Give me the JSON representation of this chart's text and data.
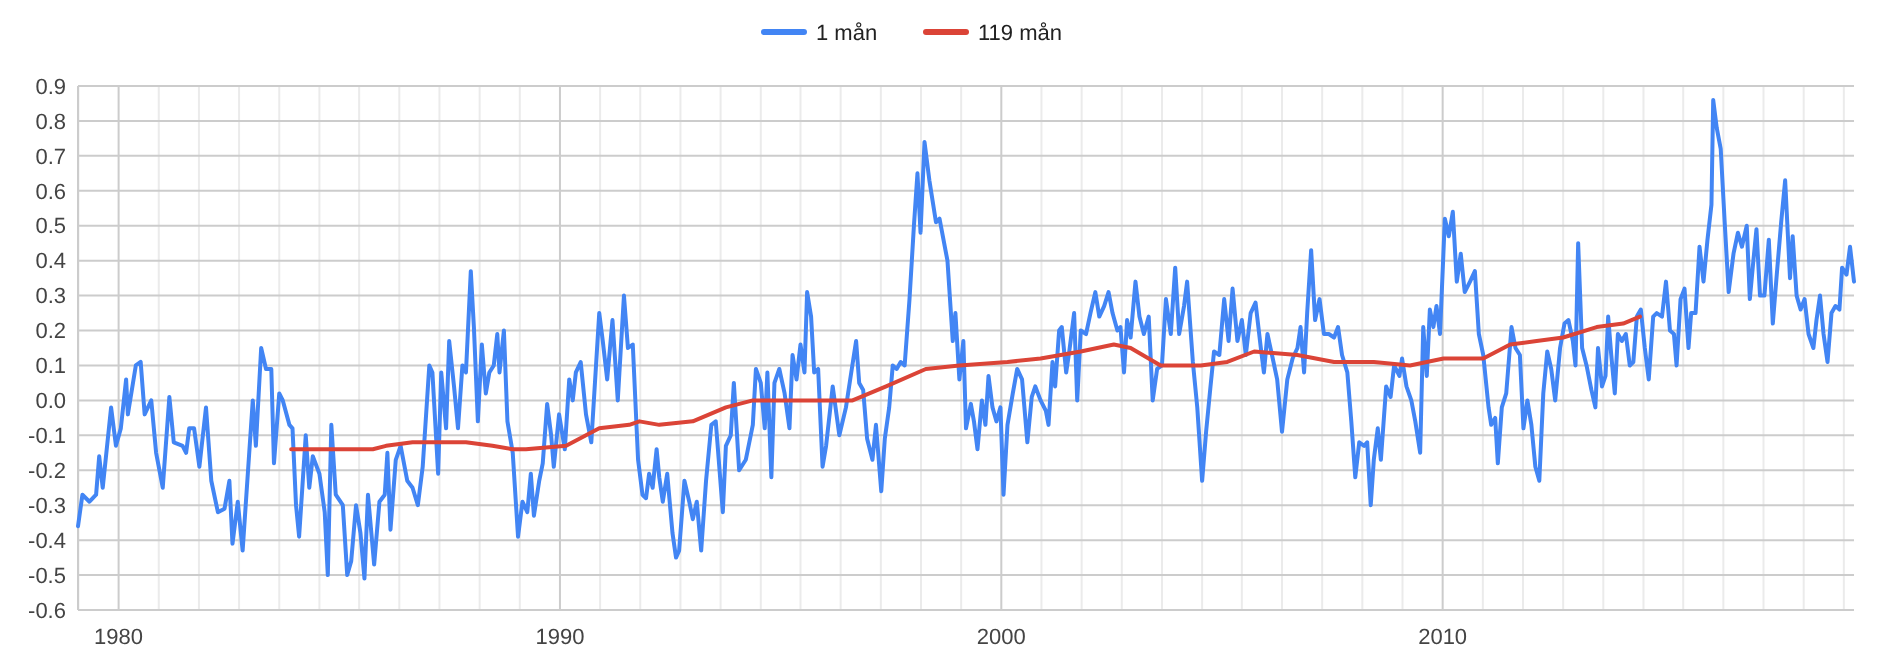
{
  "chart_data": {
    "type": "line",
    "legend": "top",
    "grid": true,
    "marker": "none",
    "line_style": "solid",
    "xlim": [
      1979.08,
      2019.32
    ],
    "xticks": [
      {
        "value": 1979.09,
        "label": null
      },
      1980,
      {
        "value": 1980.91,
        "label": null
      },
      {
        "value": 1981.82,
        "label": null
      },
      {
        "value": 1982.73,
        "label": null
      },
      {
        "value": 1983.64,
        "label": null
      },
      {
        "value": 1984.55,
        "label": null
      },
      {
        "value": 1985.45,
        "label": null
      },
      {
        "value": 1986.36,
        "label": null
      },
      {
        "value": 1987.27,
        "label": null
      },
      {
        "value": 1988.18,
        "label": null
      },
      {
        "value": 1989.09,
        "label": null
      },
      1990,
      {
        "value": 1990.91,
        "label": null
      },
      {
        "value": 1991.82,
        "label": null
      },
      {
        "value": 1992.73,
        "label": null
      },
      {
        "value": 1993.64,
        "label": null
      },
      {
        "value": 1994.55,
        "label": null
      },
      {
        "value": 1995.45,
        "label": null
      },
      {
        "value": 1996.36,
        "label": null
      },
      {
        "value": 1997.27,
        "label": null
      },
      {
        "value": 1998.18,
        "label": null
      },
      {
        "value": 1999.09,
        "label": null
      },
      2000,
      {
        "value": 2000.91,
        "label": null
      },
      {
        "value": 2001.82,
        "label": null
      },
      {
        "value": 2002.73,
        "label": null
      },
      {
        "value": 2003.64,
        "label": null
      },
      {
        "value": 2004.55,
        "label": null
      },
      {
        "value": 2005.45,
        "label": null
      },
      {
        "value": 2006.36,
        "label": null
      },
      {
        "value": 2007.27,
        "label": null
      },
      {
        "value": 2008.18,
        "label": null
      },
      {
        "value": 2009.09,
        "label": null
      },
      2010,
      {
        "value": 2010.91,
        "label": null
      },
      {
        "value": 2011.82,
        "label": null
      },
      {
        "value": 2012.73,
        "label": null
      },
      {
        "value": 2013.64,
        "label": null
      },
      {
        "value": 2014.55,
        "label": null
      },
      {
        "value": 2015.45,
        "label": null
      },
      {
        "value": 2016.36,
        "label": null
      },
      {
        "value": 2017.27,
        "label": null
      },
      {
        "value": 2018.18,
        "label": null
      },
      {
        "value": 2019.09,
        "label": null
      }
    ],
    "ylim": [
      -0.6,
      0.9
    ],
    "yticks": [
      -0.6,
      -0.5,
      -0.4,
      -0.3,
      -0.2,
      -0.1,
      {
        "value": 0,
        "label": "0.0"
      },
      0.1,
      0.2,
      0.3,
      0.4,
      0.5,
      0.6,
      0.7,
      0.8,
      0.9
    ],
    "series": [
      {
        "name": "1 mån",
        "color": "#4285f4",
        "x": [
          1979.08,
          1979.18,
          1979.34,
          1979.49,
          1979.56,
          1979.64,
          1979.83,
          1979.94,
          1980.05,
          1980.17,
          1980.21,
          1980.39,
          1980.5,
          1980.59,
          1980.74,
          1980.85,
          1981.0,
          1981.15,
          1981.25,
          1981.45,
          1981.53,
          1981.6,
          1981.71,
          1981.83,
          1981.98,
          1982.1,
          1982.25,
          1982.4,
          1982.51,
          1982.58,
          1982.7,
          1982.81,
          1983.04,
          1983.11,
          1983.23,
          1983.34,
          1983.46,
          1983.52,
          1983.64,
          1983.72,
          1983.87,
          1983.94,
          1984.02,
          1984.09,
          1984.24,
          1984.32,
          1984.4,
          1984.55,
          1984.67,
          1984.74,
          1984.82,
          1984.92,
          1985.08,
          1985.18,
          1985.27,
          1985.38,
          1985.48,
          1985.57,
          1985.65,
          1985.79,
          1985.91,
          1986.03,
          1986.09,
          1986.16,
          1986.28,
          1986.39,
          1986.54,
          1986.66,
          1986.78,
          1986.89,
          1987.04,
          1987.11,
          1987.24,
          1987.31,
          1987.42,
          1987.49,
          1987.6,
          1987.69,
          1987.79,
          1987.87,
          1987.98,
          1988.05,
          1988.14,
          1988.23,
          1988.32,
          1988.4,
          1988.5,
          1988.58,
          1988.63,
          1988.73,
          1988.81,
          1988.93,
          1989.05,
          1989.15,
          1989.26,
          1989.34,
          1989.41,
          1989.53,
          1989.61,
          1989.71,
          1989.8,
          1989.86,
          1989.98,
          1990.11,
          1990.21,
          1990.29,
          1990.36,
          1990.47,
          1990.59,
          1990.71,
          1990.89,
          1990.97,
          1991.07,
          1991.19,
          1991.31,
          1991.45,
          1991.54,
          1991.65,
          1991.77,
          1991.87,
          1991.95,
          1992.02,
          1992.1,
          1992.19,
          1992.25,
          1992.33,
          1992.43,
          1992.55,
          1992.63,
          1992.7,
          1992.82,
          1992.93,
          1993.01,
          1993.1,
          1993.2,
          1993.31,
          1993.43,
          1993.53,
          1993.69,
          1993.76,
          1993.87,
          1993.94,
          1994.06,
          1994.21,
          1994.37,
          1994.44,
          1994.55,
          1994.64,
          1994.7,
          1994.79,
          1994.86,
          1994.97,
          1995.09,
          1995.2,
          1995.27,
          1995.36,
          1995.45,
          1995.54,
          1995.6,
          1995.69,
          1995.76,
          1995.85,
          1995.95,
          1996.03,
          1996.18,
          1996.33,
          1996.48,
          1996.6,
          1996.71,
          1996.78,
          1996.87,
          1996.96,
          1997.08,
          1997.16,
          1997.28,
          1997.36,
          1997.46,
          1997.54,
          1997.63,
          1997.72,
          1997.81,
          1997.92,
          1998.02,
          1998.1,
          1998.17,
          1998.26,
          1998.37,
          1998.52,
          1998.6,
          1998.78,
          1998.9,
          1998.96,
          1999.05,
          1999.14,
          1999.2,
          1999.31,
          1999.38,
          1999.46,
          1999.56,
          1999.64,
          1999.71,
          1999.8,
          1999.89,
          1999.98,
          2000.05,
          2000.14,
          2000.26,
          2000.36,
          2000.47,
          2000.59,
          2000.69,
          2000.77,
          2000.89,
          2001.01,
          2001.07,
          2001.16,
          2001.22,
          2001.31,
          2001.37,
          2001.47,
          2001.54,
          2001.65,
          2001.72,
          2001.8,
          2001.92,
          2002.02,
          2002.13,
          2002.22,
          2002.33,
          2002.43,
          2002.52,
          2002.63,
          2002.7,
          2002.78,
          2002.85,
          2002.93,
          2003.04,
          2003.13,
          2003.23,
          2003.34,
          2003.43,
          2003.53,
          2003.64,
          2003.73,
          2003.84,
          2003.94,
          2004.03,
          2004.14,
          2004.21,
          2004.34,
          2004.44,
          2004.55,
          2004.64,
          2004.74,
          2004.82,
          2004.94,
          2005.05,
          2005.15,
          2005.24,
          2005.35,
          2005.45,
          2005.54,
          2005.65,
          2005.76,
          2005.88,
          2005.95,
          2006.03,
          2006.15,
          2006.25,
          2006.36,
          2006.48,
          2006.6,
          2006.71,
          2006.78,
          2006.86,
          2006.93,
          2007.02,
          2007.11,
          2007.21,
          2007.31,
          2007.42,
          2007.54,
          2007.63,
          2007.72,
          2007.84,
          2007.93,
          2008.02,
          2008.11,
          2008.22,
          2008.29,
          2008.37,
          2008.44,
          2008.53,
          2008.6,
          2008.72,
          2008.82,
          2008.9,
          2009.02,
          2009.08,
          2009.18,
          2009.29,
          2009.38,
          2009.49,
          2009.56,
          2009.64,
          2009.71,
          2009.79,
          2009.86,
          2009.94,
          2010.05,
          2010.14,
          2010.23,
          2010.32,
          2010.41,
          2010.5,
          2010.62,
          2010.73,
          2010.82,
          2010.92,
          2011.04,
          2011.1,
          2011.19,
          2011.25,
          2011.34,
          2011.44,
          2011.56,
          2011.65,
          2011.75,
          2011.83,
          2011.92,
          2012.01,
          2012.1,
          2012.19,
          2012.28,
          2012.37,
          2012.46,
          2012.55,
          2012.66,
          2012.76,
          2012.85,
          2012.95,
          2013.01,
          2013.07,
          2013.16,
          2013.26,
          2013.37,
          2013.46,
          2013.52,
          2013.61,
          2013.69,
          2013.75,
          2013.82,
          2013.9,
          2013.97,
          2014.06,
          2014.15,
          2014.24,
          2014.32,
          2014.4,
          2014.49,
          2014.58,
          2014.67,
          2014.77,
          2014.85,
          2014.97,
          2015.06,
          2015.15,
          2015.24,
          2015.3,
          2015.39,
          2015.48,
          2015.57,
          2015.63,
          2015.73,
          2015.82,
          2015.91,
          2016.0,
          2016.09,
          2016.13,
          2016.21,
          2016.3,
          2016.39,
          2016.48,
          2016.59,
          2016.69,
          2016.78,
          2016.89,
          2016.96,
          2017.04,
          2017.11,
          2017.19,
          2017.29,
          2017.39,
          2017.48,
          2017.57,
          2017.67,
          2017.76,
          2017.87,
          2017.93,
          2018.02,
          2018.11,
          2018.2,
          2018.29,
          2018.4,
          2018.47,
          2018.55,
          2018.63,
          2018.72,
          2018.81,
          2018.9,
          2018.99,
          2019.05,
          2019.15,
          2019.23,
          2019.32
        ],
        "values": [
          -0.36,
          -0.27,
          -0.29,
          -0.27,
          -0.16,
          -0.25,
          -0.02,
          -0.13,
          -0.08,
          0.06,
          -0.04,
          0.1,
          0.11,
          -0.04,
          0.0,
          -0.15,
          -0.25,
          0.01,
          -0.12,
          -0.13,
          -0.15,
          -0.08,
          -0.08,
          -0.19,
          -0.02,
          -0.23,
          -0.32,
          -0.31,
          -0.23,
          -0.41,
          -0.29,
          -0.43,
          0.0,
          -0.13,
          0.15,
          0.09,
          0.09,
          -0.18,
          0.02,
          0.0,
          -0.07,
          -0.08,
          -0.3,
          -0.39,
          -0.1,
          -0.25,
          -0.16,
          -0.21,
          -0.32,
          -0.5,
          -0.07,
          -0.27,
          -0.3,
          -0.5,
          -0.46,
          -0.3,
          -0.38,
          -0.51,
          -0.27,
          -0.47,
          -0.29,
          -0.27,
          -0.15,
          -0.37,
          -0.17,
          -0.13,
          -0.23,
          -0.25,
          -0.3,
          -0.19,
          0.1,
          0.08,
          -0.21,
          0.08,
          -0.08,
          0.17,
          0.04,
          -0.08,
          0.1,
          0.08,
          0.37,
          0.21,
          -0.06,
          0.16,
          0.02,
          0.08,
          0.1,
          0.19,
          0.08,
          0.2,
          -0.06,
          -0.15,
          -0.39,
          -0.29,
          -0.32,
          -0.21,
          -0.33,
          -0.23,
          -0.18,
          -0.01,
          -0.1,
          -0.19,
          -0.04,
          -0.14,
          0.06,
          0.0,
          0.08,
          0.11,
          -0.04,
          -0.12,
          0.25,
          0.17,
          0.06,
          0.23,
          0.0,
          0.3,
          0.15,
          0.16,
          -0.17,
          -0.27,
          -0.28,
          -0.21,
          -0.25,
          -0.14,
          -0.22,
          -0.29,
          -0.21,
          -0.38,
          -0.45,
          -0.43,
          -0.23,
          -0.29,
          -0.34,
          -0.29,
          -0.43,
          -0.23,
          -0.07,
          -0.06,
          -0.32,
          -0.13,
          -0.1,
          0.05,
          -0.2,
          -0.17,
          -0.07,
          0.09,
          0.05,
          -0.08,
          0.08,
          -0.22,
          0.05,
          0.09,
          0.02,
          -0.08,
          0.13,
          0.06,
          0.16,
          0.08,
          0.31,
          0.24,
          0.08,
          0.09,
          -0.19,
          -0.13,
          0.04,
          -0.1,
          -0.02,
          0.08,
          0.17,
          0.05,
          0.03,
          -0.11,
          -0.17,
          -0.07,
          -0.26,
          -0.11,
          -0.02,
          0.1,
          0.09,
          0.11,
          0.1,
          0.29,
          0.5,
          0.65,
          0.48,
          0.74,
          0.63,
          0.51,
          0.52,
          0.4,
          0.17,
          0.25,
          0.06,
          0.17,
          -0.08,
          -0.01,
          -0.06,
          -0.14,
          0.0,
          -0.07,
          0.07,
          -0.02,
          -0.06,
          -0.02,
          -0.27,
          -0.07,
          0.02,
          0.09,
          0.06,
          -0.12,
          0.01,
          0.04,
          0.0,
          -0.03,
          -0.07,
          0.11,
          0.04,
          0.2,
          0.21,
          0.08,
          0.14,
          0.25,
          0.0,
          0.2,
          0.19,
          0.25,
          0.31,
          0.24,
          0.27,
          0.31,
          0.25,
          0.2,
          0.21,
          0.08,
          0.23,
          0.18,
          0.34,
          0.24,
          0.19,
          0.24,
          0.0,
          0.09,
          0.1,
          0.29,
          0.19,
          0.38,
          0.19,
          0.27,
          0.34,
          0.11,
          -0.02,
          -0.23,
          -0.09,
          0.04,
          0.14,
          0.13,
          0.29,
          0.17,
          0.32,
          0.17,
          0.23,
          0.13,
          0.25,
          0.28,
          0.15,
          0.08,
          0.19,
          0.12,
          0.06,
          -0.09,
          0.06,
          0.12,
          0.15,
          0.21,
          0.08,
          0.25,
          0.43,
          0.23,
          0.29,
          0.19,
          0.19,
          0.18,
          0.21,
          0.13,
          0.08,
          -0.06,
          -0.22,
          -0.12,
          -0.13,
          -0.12,
          -0.3,
          -0.17,
          -0.08,
          -0.17,
          0.04,
          0.01,
          0.1,
          0.07,
          0.12,
          0.04,
          0.0,
          -0.06,
          -0.15,
          0.21,
          0.07,
          0.26,
          0.21,
          0.27,
          0.19,
          0.52,
          0.47,
          0.54,
          0.34,
          0.42,
          0.31,
          0.34,
          0.37,
          0.19,
          0.13,
          -0.02,
          -0.07,
          -0.05,
          -0.18,
          -0.02,
          0.02,
          0.21,
          0.15,
          0.13,
          -0.08,
          0.0,
          -0.07,
          -0.19,
          -0.23,
          0.02,
          0.14,
          0.09,
          0.0,
          0.15,
          0.22,
          0.23,
          0.17,
          0.1,
          0.45,
          0.15,
          0.1,
          0.03,
          -0.02,
          0.15,
          0.04,
          0.07,
          0.24,
          0.13,
          0.02,
          0.19,
          0.17,
          0.19,
          0.1,
          0.11,
          0.24,
          0.26,
          0.15,
          0.06,
          0.24,
          0.25,
          0.24,
          0.34,
          0.2,
          0.19,
          0.1,
          0.29,
          0.32,
          0.15,
          0.25,
          0.25,
          0.44,
          0.34,
          0.46,
          0.56,
          0.86,
          0.78,
          0.72,
          0.51,
          0.31,
          0.42,
          0.48,
          0.44,
          0.5,
          0.29,
          0.4,
          0.49,
          0.3,
          0.3,
          0.46,
          0.22,
          0.36,
          0.51,
          0.63,
          0.35,
          0.47,
          0.3,
          0.26,
          0.29,
          0.19,
          0.15,
          0.23,
          0.3,
          0.19,
          0.11,
          0.25,
          0.27,
          0.26,
          0.38,
          0.36,
          0.44,
          0.34
        ]
      },
      {
        "name": "119 mån",
        "color": "#db4437",
        "x": [
          1983.91,
          1985.0,
          1985.76,
          1986.06,
          1986.66,
          1987.42,
          1987.87,
          1988.47,
          1988.93,
          1989.23,
          1990.14,
          1990.89,
          1991.57,
          1991.8,
          1992.25,
          1993.01,
          1993.76,
          1994.37,
          1995.73,
          1996.63,
          1997.39,
          1998.29,
          1999.05,
          2000.14,
          2000.89,
          2001.8,
          2002.55,
          2002.93,
          2003.61,
          2004.52,
          2005.12,
          2005.73,
          2006.71,
          2007.54,
          2008.44,
          2009.26,
          2010.02,
          2010.92,
          2011.53,
          2012.13,
          2012.73,
          2013.49,
          2014.09,
          2014.47
        ],
        "values": [
          -0.14,
          -0.14,
          -0.14,
          -0.13,
          -0.12,
          -0.12,
          -0.12,
          -0.13,
          -0.14,
          -0.14,
          -0.13,
          -0.08,
          -0.07,
          -0.06,
          -0.07,
          -0.06,
          -0.02,
          0.0,
          0.0,
          0.0,
          0.04,
          0.09,
          0.1,
          0.11,
          0.12,
          0.14,
          0.16,
          0.15,
          0.1,
          0.1,
          0.11,
          0.14,
          0.13,
          0.11,
          0.11,
          0.1,
          0.12,
          0.12,
          0.16,
          0.17,
          0.18,
          0.21,
          0.22,
          0.24
        ]
      }
    ]
  }
}
